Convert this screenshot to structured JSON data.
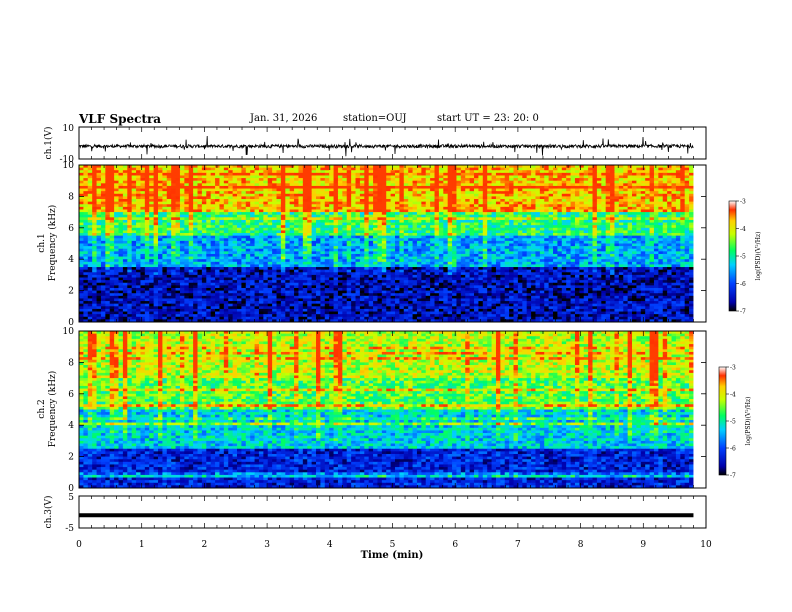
{
  "header": {
    "title": "VLF Spectra",
    "date": "Jan. 31, 2026",
    "station": "station=OUJ",
    "start": "start UT =  23: 20: 0"
  },
  "chart_data": [
    {
      "type": "line",
      "name_label": "ch.1(V)",
      "ylabel": "ch.1(V)",
      "ylim": [
        -10,
        10
      ],
      "yticks": [
        "10",
        "-10"
      ],
      "xlim": [
        0,
        10
      ],
      "description_values": {
        "baseline": -2,
        "noise_amplitude": 2,
        "spike_amplitude": 6
      }
    },
    {
      "type": "heatmap",
      "ylabel": "ch.1\nFrequency (kHz)",
      "ylabel_top": "ch.1",
      "ylabel_bottom": "Frequency (kHz)",
      "ylim": [
        0,
        10
      ],
      "yticks": [
        "0",
        "2",
        "4",
        "6",
        "8",
        "10"
      ],
      "xlim": [
        0,
        10
      ],
      "colorbar": {
        "label": "log(PSD)(V²/Hz)",
        "range": [
          -7,
          -3
        ],
        "ticks": [
          "-3",
          "-4",
          "-5",
          "-6",
          "-7"
        ]
      },
      "zones": [
        {
          "from_khz": 0,
          "to_khz": 3.5,
          "log_psd": -6.5
        },
        {
          "from_khz": 3.5,
          "to_khz": 5.5,
          "log_psd": -5.5
        },
        {
          "from_khz": 5.5,
          "to_khz": 7.0,
          "log_psd": -4.8
        },
        {
          "from_khz": 7.0,
          "to_khz": 10,
          "log_psd": -3.8
        }
      ]
    },
    {
      "type": "heatmap",
      "ylabel": "ch.2\nFrequency (kHz)",
      "ylabel_top": "ch.2",
      "ylabel_bottom": "Frequency (kHz)",
      "ylim": [
        0,
        10
      ],
      "yticks": [
        "0",
        "2",
        "4",
        "6",
        "8",
        "10"
      ],
      "xlim": [
        0,
        10
      ],
      "colorbar": {
        "label": "log(PSD)(V²/Hz)",
        "range": [
          -7,
          -3
        ],
        "ticks": [
          "-3",
          "-4",
          "-5",
          "-6",
          "-7"
        ]
      },
      "zones": [
        {
          "from_khz": 0,
          "to_khz": 2.5,
          "log_psd": -6.3
        },
        {
          "from_khz": 2.5,
          "to_khz": 5.0,
          "log_psd": -5.3
        },
        {
          "from_khz": 5.0,
          "to_khz": 7.0,
          "log_psd": -4.6
        },
        {
          "from_khz": 7.0,
          "to_khz": 10,
          "log_psd": -4.2
        }
      ]
    },
    {
      "type": "line",
      "ylabel": "ch.3(V)",
      "ylim": [
        -5,
        5
      ],
      "yticks": [
        "5",
        "-5"
      ],
      "xlim": [
        0,
        10
      ],
      "x": [
        0,
        9.8
      ],
      "y": [
        -1,
        -1
      ]
    }
  ],
  "xaxis": {
    "label": "Time (min)",
    "ticks": [
      "0",
      "1",
      "2",
      "3",
      "4",
      "5",
      "6",
      "7",
      "8",
      "9",
      "10"
    ],
    "data_end": 9.8
  }
}
